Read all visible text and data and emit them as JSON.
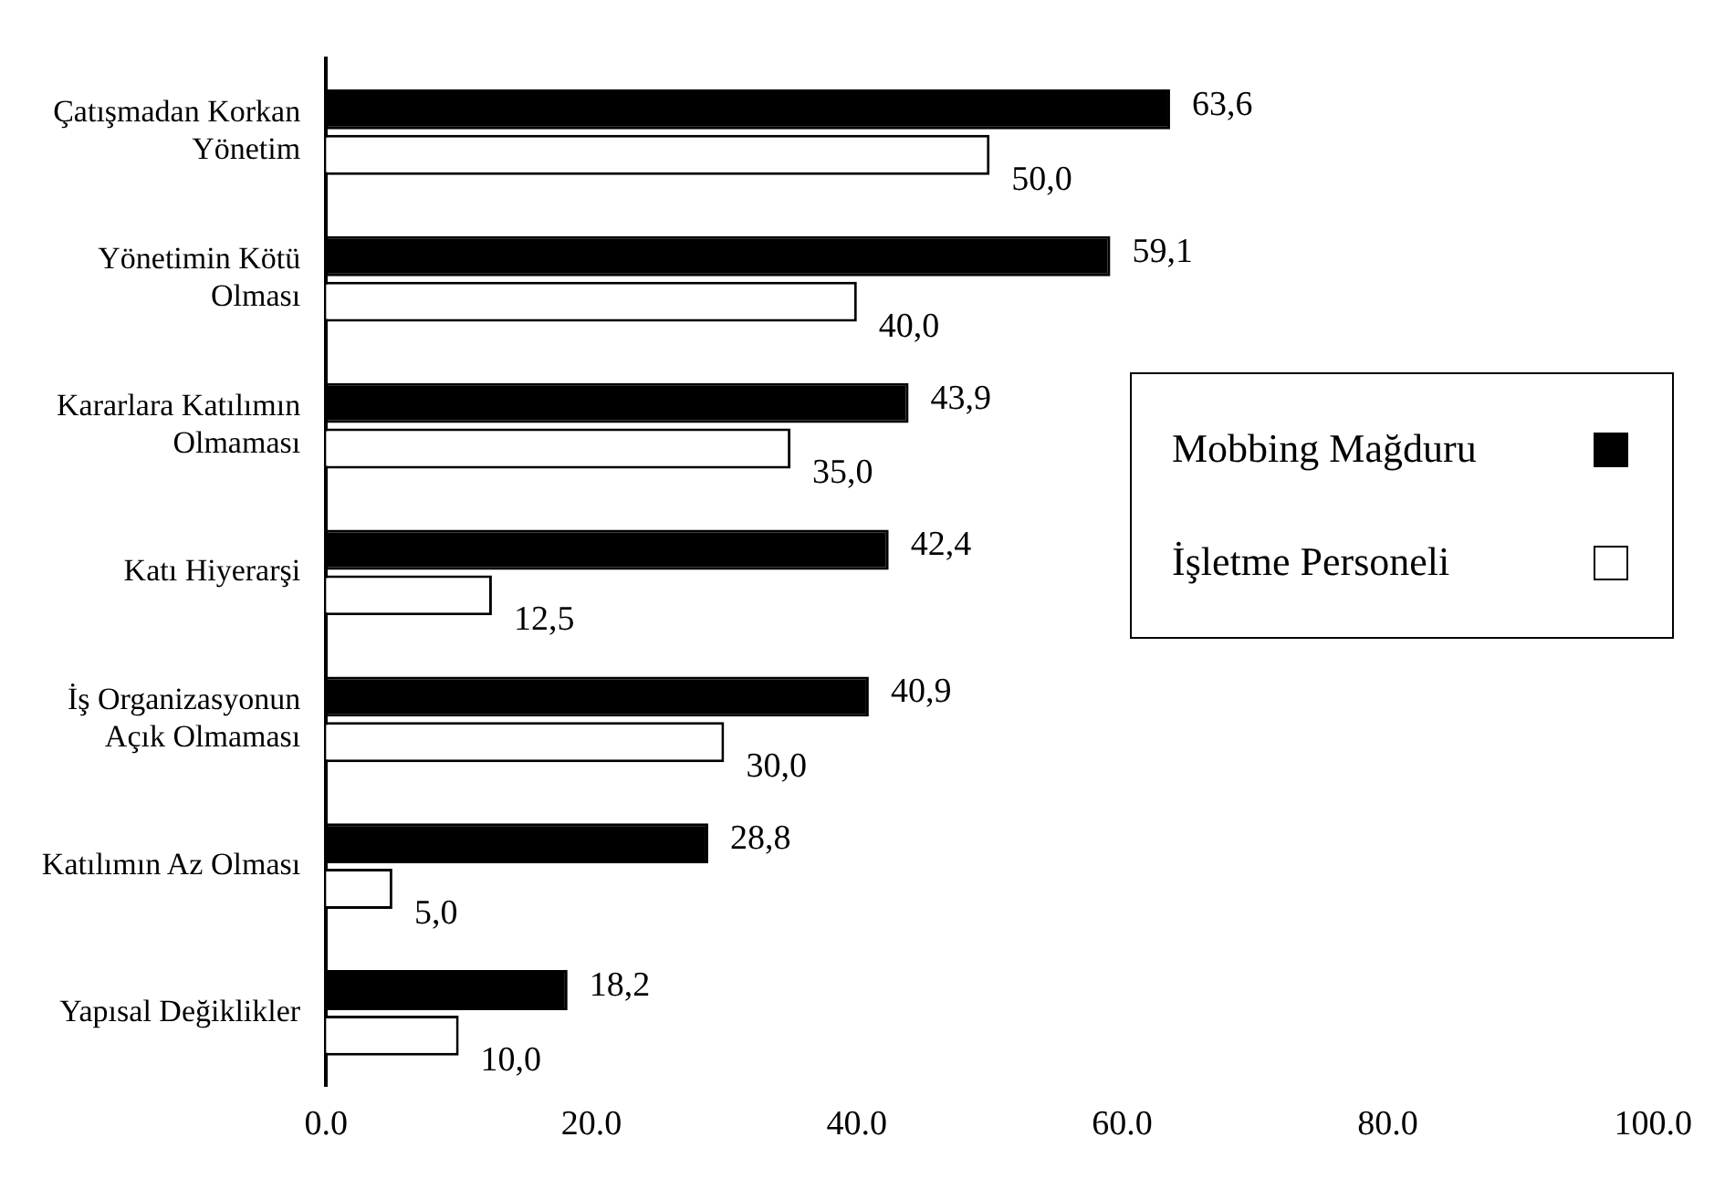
{
  "chart_data": {
    "type": "bar",
    "orientation": "horizontal",
    "categories": [
      "Çatışmadan Korkan Yönetim",
      "Yönetimin Kötü Olması",
      "Kararlara Katılımın Olmaması",
      "Katı Hiyerarşi",
      "İş Organizasyonun Açık Olmaması",
      "Katılımın Az Olması",
      "Yapısal Değiklikler"
    ],
    "series": [
      {
        "name": "Mobbing Mağduru",
        "color": "#000000",
        "values": [
          63.6,
          59.1,
          43.9,
          42.4,
          40.9,
          28.8,
          18.2
        ],
        "value_labels": [
          "63,6",
          "59,1",
          "43,9",
          "42,4",
          "40,9",
          "28,8",
          "18,2"
        ]
      },
      {
        "name": "İşletme Personeli",
        "color": "#ffffff",
        "values": [
          50.0,
          40.0,
          35.0,
          12.5,
          30.0,
          5.0,
          10.0
        ],
        "value_labels": [
          "50,0",
          "40,0",
          "35,0",
          "12,5",
          "30,0",
          "5,0",
          "10,0"
        ]
      }
    ],
    "xlim": [
      0,
      100
    ],
    "xticks": [
      {
        "value": 0,
        "label": "0.0"
      },
      {
        "value": 20,
        "label": "20.0"
      },
      {
        "value": 40,
        "label": "40.0"
      },
      {
        "value": 60,
        "label": "60.0"
      },
      {
        "value": 80,
        "label": "80.0"
      },
      {
        "value": 100,
        "label": "100.0"
      }
    ],
    "grid": false,
    "legend": "right"
  }
}
